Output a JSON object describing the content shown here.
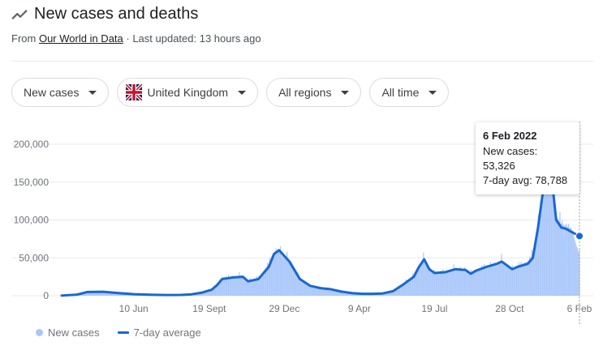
{
  "header": {
    "title": "New cases and deaths",
    "source_prefix": "From",
    "source_link": "Our World in Data",
    "updated": "· Last updated: 13 hours ago"
  },
  "filters": [
    {
      "label": "New cases"
    },
    {
      "label": "United Kingdom"
    },
    {
      "label": "All regions"
    },
    {
      "label": "All time"
    }
  ],
  "tooltip": {
    "date": "6 Feb 2022",
    "new_cases": "New cases: 53,326",
    "avg": "7-day avg: 78,788"
  },
  "legend": {
    "new_cases": "New cases",
    "avg": "7-day average"
  },
  "colors": {
    "bars": "#a8c7fa",
    "line": "#1967d2",
    "grid": "#e8eaed"
  },
  "chart_data": {
    "type": "area",
    "y_ticks": [
      "200,000",
      "150,000",
      "100,000",
      "50,000",
      "0"
    ],
    "y_tick_values": [
      200000,
      150000,
      100000,
      50000,
      0
    ],
    "ylim": [
      0,
      200000
    ],
    "x_tick_labels": [
      "10 Jun",
      "19 Sept",
      "29 Dec",
      "9 Apr",
      "19 Jul",
      "28 Oct",
      "6 Feb"
    ],
    "x_tick_pos": [
      0.139,
      0.285,
      0.43,
      0.575,
      0.72,
      0.865,
      1.0
    ],
    "series": [
      {
        "name": "7-day average",
        "points": [
          [
            0.0,
            200
          ],
          [
            0.03,
            1500
          ],
          [
            0.05,
            5000
          ],
          [
            0.08,
            5200
          ],
          [
            0.11,
            3500
          ],
          [
            0.14,
            2000
          ],
          [
            0.17,
            1300
          ],
          [
            0.2,
            1000
          ],
          [
            0.23,
            1100
          ],
          [
            0.25,
            1800
          ],
          [
            0.27,
            4000
          ],
          [
            0.29,
            8000
          ],
          [
            0.3,
            14000
          ],
          [
            0.31,
            22000
          ],
          [
            0.33,
            24000
          ],
          [
            0.35,
            25000
          ],
          [
            0.36,
            19000
          ],
          [
            0.38,
            22000
          ],
          [
            0.4,
            38000
          ],
          [
            0.41,
            55000
          ],
          [
            0.42,
            60000
          ],
          [
            0.44,
            45000
          ],
          [
            0.46,
            22000
          ],
          [
            0.48,
            13000
          ],
          [
            0.5,
            10000
          ],
          [
            0.52,
            8500
          ],
          [
            0.54,
            5500
          ],
          [
            0.56,
            3500
          ],
          [
            0.58,
            2500
          ],
          [
            0.6,
            2500
          ],
          [
            0.62,
            3000
          ],
          [
            0.64,
            6000
          ],
          [
            0.66,
            15000
          ],
          [
            0.68,
            25000
          ],
          [
            0.69,
            38000
          ],
          [
            0.7,
            48000
          ],
          [
            0.71,
            35000
          ],
          [
            0.72,
            30000
          ],
          [
            0.74,
            31000
          ],
          [
            0.76,
            35000
          ],
          [
            0.78,
            34000
          ],
          [
            0.79,
            29000
          ],
          [
            0.8,
            33000
          ],
          [
            0.82,
            38000
          ],
          [
            0.84,
            42000
          ],
          [
            0.85,
            45000
          ],
          [
            0.86,
            40000
          ],
          [
            0.87,
            35000
          ],
          [
            0.88,
            38000
          ],
          [
            0.9,
            42000
          ],
          [
            0.91,
            50000
          ],
          [
            0.92,
            90000
          ],
          [
            0.93,
            140000
          ],
          [
            0.937,
            180000
          ],
          [
            0.945,
            165000
          ],
          [
            0.955,
            100000
          ],
          [
            0.965,
            90000
          ],
          [
            0.975,
            88000
          ],
          [
            0.985,
            84000
          ],
          [
            1.0,
            78788
          ]
        ]
      },
      {
        "name": "New cases",
        "points": [
          [
            0.0,
            200
          ],
          [
            0.03,
            1500
          ],
          [
            0.05,
            5000
          ],
          [
            0.08,
            5200
          ],
          [
            0.11,
            3500
          ],
          [
            0.14,
            2000
          ],
          [
            0.17,
            1300
          ],
          [
            0.2,
            1000
          ],
          [
            0.23,
            1100
          ],
          [
            0.25,
            1800
          ],
          [
            0.27,
            4000
          ],
          [
            0.29,
            8000
          ],
          [
            0.3,
            15000
          ],
          [
            0.31,
            24000
          ],
          [
            0.33,
            26000
          ],
          [
            0.35,
            27000
          ],
          [
            0.36,
            20000
          ],
          [
            0.38,
            24000
          ],
          [
            0.4,
            42000
          ],
          [
            0.41,
            58000
          ],
          [
            0.42,
            62000
          ],
          [
            0.44,
            46000
          ],
          [
            0.46,
            22000
          ],
          [
            0.48,
            13000
          ],
          [
            0.5,
            10000
          ],
          [
            0.52,
            8500
          ],
          [
            0.54,
            5500
          ],
          [
            0.56,
            3500
          ],
          [
            0.58,
            2500
          ],
          [
            0.6,
            2500
          ],
          [
            0.62,
            3000
          ],
          [
            0.64,
            6500
          ],
          [
            0.66,
            16000
          ],
          [
            0.68,
            27000
          ],
          [
            0.69,
            40000
          ],
          [
            0.7,
            50000
          ],
          [
            0.71,
            36000
          ],
          [
            0.72,
            31000
          ],
          [
            0.74,
            32000
          ],
          [
            0.76,
            36000
          ],
          [
            0.78,
            35000
          ],
          [
            0.79,
            30000
          ],
          [
            0.8,
            34000
          ],
          [
            0.82,
            39000
          ],
          [
            0.84,
            43000
          ],
          [
            0.85,
            47000
          ],
          [
            0.86,
            41000
          ],
          [
            0.87,
            36000
          ],
          [
            0.88,
            40000
          ],
          [
            0.9,
            45000
          ],
          [
            0.91,
            55000
          ],
          [
            0.92,
            100000
          ],
          [
            0.93,
            150000
          ],
          [
            0.937,
            190000
          ],
          [
            0.945,
            170000
          ],
          [
            0.955,
            105000
          ],
          [
            0.965,
            95000
          ],
          [
            0.975,
            92000
          ],
          [
            0.985,
            88000
          ],
          [
            1.0,
            53326
          ]
        ]
      }
    ]
  }
}
